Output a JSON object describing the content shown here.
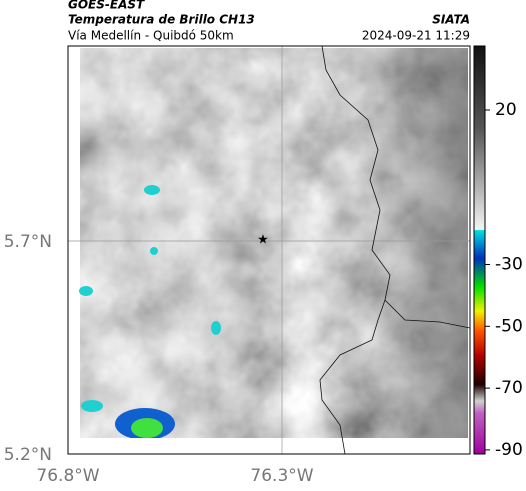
{
  "header": {
    "title": "GOES-EAST",
    "subtitle": "Temperatura de Brillo CH13",
    "location": "Vía Medellín - Quibdó 50km",
    "source": "SIATA",
    "datetime": "2024-09-21 11:29"
  },
  "map": {
    "lat_labels": [
      "5.7°N",
      "5.2°N"
    ],
    "lon_labels": [
      "76.8°W",
      "76.3°W"
    ]
  },
  "colorbar": {
    "ticks": [
      20,
      -30,
      -50,
      -70,
      -90
    ]
  }
}
